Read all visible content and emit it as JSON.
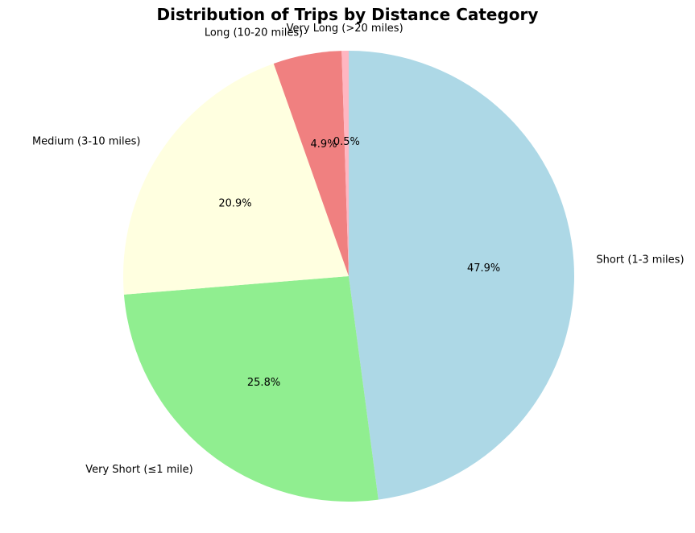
{
  "chart_data": {
    "type": "pie",
    "title": "Distribution of Trips by Distance Category",
    "start_angle_deg": 90,
    "direction": "clockwise",
    "slices": [
      {
        "label": "Short (1-3 miles)",
        "percent": 47.9,
        "pct_text": "47.9%",
        "color": "#add8e6"
      },
      {
        "label": "Very Short (≤1 mile)",
        "percent": 25.8,
        "pct_text": "25.8%",
        "color": "#90ee90"
      },
      {
        "label": "Medium (3-10 miles)",
        "percent": 20.9,
        "pct_text": "20.9%",
        "color": "#ffffe0"
      },
      {
        "label": "Long (10-20 miles)",
        "percent": 4.9,
        "pct_text": "4.9%",
        "color": "#f08080"
      },
      {
        "label": "Very Long (>20 miles)",
        "percent": 0.5,
        "pct_text": "0.5%",
        "color": "#ffb6c1"
      }
    ]
  }
}
